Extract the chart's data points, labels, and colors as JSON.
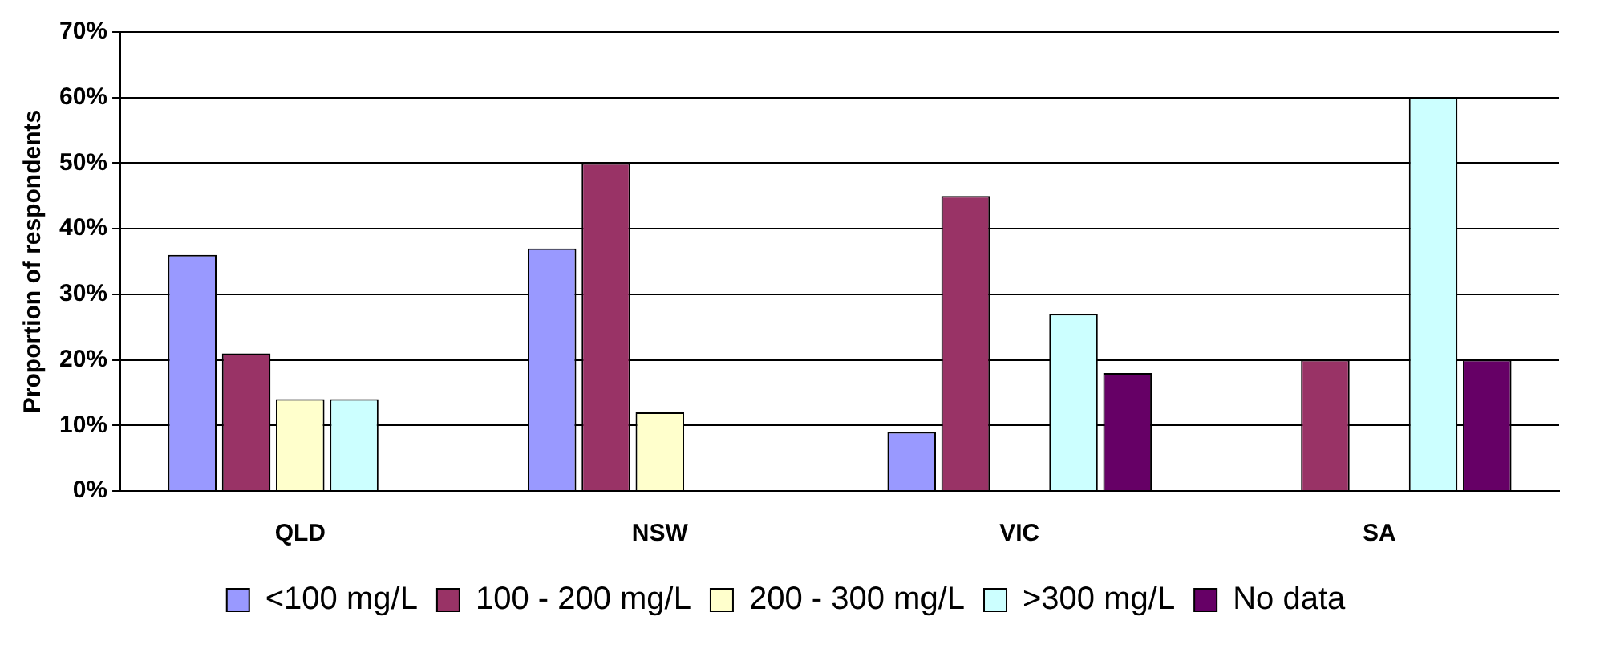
{
  "chart_data": {
    "type": "bar",
    "ylabel": "Proportion of respondents",
    "categories": [
      "QLD",
      "NSW",
      "VIC",
      "SA"
    ],
    "series": [
      {
        "name": "<100 mg/L",
        "color": "#9999ff",
        "values": [
          36,
          37,
          9,
          null
        ]
      },
      {
        "name": "100 - 200 mg/L",
        "color": "#993366",
        "values": [
          21,
          50,
          45,
          20
        ]
      },
      {
        "name": "200 - 300 mg/L",
        "color": "#ffffcc",
        "values": [
          14,
          12,
          null,
          null
        ]
      },
      {
        "name": ">300 mg/L",
        "color": "#ccffff",
        "values": [
          14,
          null,
          27,
          60
        ]
      },
      {
        "name": "No data",
        "color": "#660066",
        "values": [
          null,
          null,
          18,
          20
        ]
      }
    ],
    "ylim": [
      0,
      70
    ],
    "yticks": [
      {
        "value": 0,
        "label": "0%"
      },
      {
        "value": 10,
        "label": "10%"
      },
      {
        "value": 20,
        "label": "20%"
      },
      {
        "value": 30,
        "label": "30%"
      },
      {
        "value": 40,
        "label": "40%"
      },
      {
        "value": 50,
        "label": "50%"
      },
      {
        "value": 60,
        "label": "60%"
      },
      {
        "value": 70,
        "label": "70%"
      }
    ],
    "grid": "y",
    "legend": "bottom"
  }
}
